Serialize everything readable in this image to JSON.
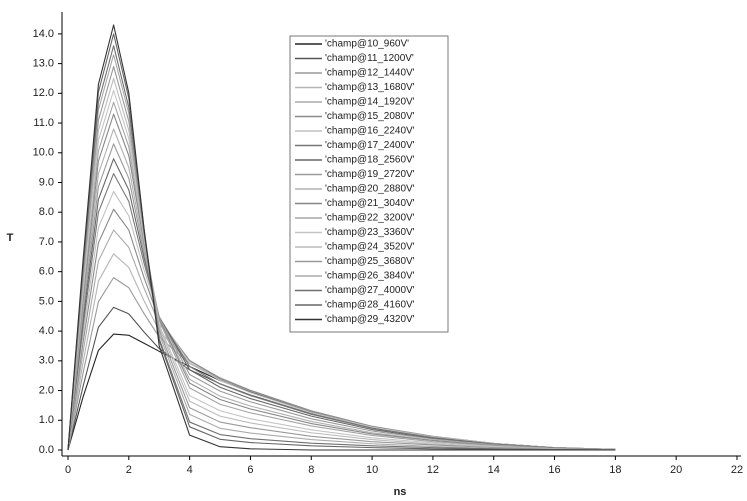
{
  "chart_data": {
    "type": "line",
    "xlabel": "ns",
    "ylabel": "T",
    "x": [
      0,
      0.5,
      1,
      1.5,
      2,
      2.5,
      3,
      4,
      5,
      6,
      8,
      10,
      12,
      14,
      16,
      18
    ],
    "xlim": [
      0,
      22
    ],
    "xticks": [
      0,
      2,
      4,
      6,
      8,
      10,
      12,
      14,
      16,
      18,
      20,
      22
    ],
    "ylim": [
      0,
      14.4
    ],
    "yticks": [
      {
        "value": 0,
        "label": "0.0"
      },
      {
        "value": 1,
        "label": "1.0"
      },
      {
        "value": 2,
        "label": "2.0"
      },
      {
        "value": 3,
        "label": "3.0"
      },
      {
        "value": 4,
        "label": "4.0"
      },
      {
        "value": 5,
        "label": "5.0"
      },
      {
        "value": 6,
        "label": "6.0"
      },
      {
        "value": 7,
        "label": "7.0"
      },
      {
        "value": 8,
        "label": "8.0"
      },
      {
        "value": 9,
        "label": "9.0"
      },
      {
        "value": 10,
        "label": "10.0"
      },
      {
        "value": 11,
        "label": "11.0"
      },
      {
        "value": 12,
        "label": "12.0"
      },
      {
        "value": 13,
        "label": "13.0"
      },
      {
        "value": 14,
        "label": "14.0"
      }
    ],
    "grid": false,
    "series": [
      {
        "name": "'champ@10_960V'",
        "color": "#222222",
        "values": [
          0,
          1.8,
          3.35,
          3.9,
          3.86,
          3.59,
          3.32,
          2.81,
          2.34,
          1.95,
          1.29,
          0.78,
          0.45,
          0.22,
          0.08,
          0.02
        ]
      },
      {
        "name": "'champ@11_1200V'",
        "color": "#555555",
        "values": [
          0,
          2.16,
          4.13,
          4.8,
          4.58,
          3.97,
          3.41,
          2.7,
          2.23,
          1.85,
          1.22,
          0.74,
          0.43,
          0.21,
          0.07,
          0.02
        ]
      },
      {
        "name": "'champ@12_1440V'",
        "color": "#999999",
        "values": [
          0,
          2.61,
          4.99,
          5.8,
          5.46,
          4.59,
          3.8,
          2.91,
          2.38,
          1.98,
          1.3,
          0.79,
          0.45,
          0.22,
          0.08,
          0.02
        ]
      },
      {
        "name": "'champ@13_1680V'",
        "color": "#b5b5b5",
        "values": [
          0,
          2.97,
          5.68,
          6.6,
          6.14,
          5.02,
          4.01,
          2.94,
          2.4,
          1.99,
          1.31,
          0.79,
          0.46,
          0.22,
          0.08,
          0.02
        ]
      },
      {
        "name": "'champ@14_1920V'",
        "color": "#aaaaaa",
        "values": [
          0,
          3.33,
          6.36,
          7.4,
          6.82,
          5.45,
          4.23,
          3.0,
          2.43,
          2.01,
          1.32,
          0.8,
          0.46,
          0.22,
          0.08,
          0.02
        ]
      },
      {
        "name": "'champ@15_2080V'",
        "color": "#8a8a8a",
        "values": [
          0,
          3.65,
          6.97,
          8.1,
          7.4,
          5.8,
          4.38,
          3.01,
          2.41,
          2.0,
          1.31,
          0.79,
          0.45,
          0.22,
          0.08,
          0.02
        ]
      },
      {
        "name": "'champ@16_2240V'",
        "color": "#c0c0c0",
        "values": [
          0,
          3.92,
          7.48,
          8.7,
          7.88,
          6.06,
          4.45,
          2.92,
          2.34,
          1.93,
          1.26,
          0.77,
          0.44,
          0.22,
          0.08,
          0.02
        ]
      },
      {
        "name": "'champ@17_2400V'",
        "color": "#777777",
        "values": [
          0,
          4.19,
          8.0,
          9.3,
          8.36,
          6.29,
          4.47,
          2.81,
          2.22,
          1.83,
          1.2,
          0.73,
          0.42,
          0.2,
          0.07,
          0.02
        ]
      },
      {
        "name": "'champ@18_2560V'",
        "color": "#666666",
        "values": [
          0,
          4.41,
          8.43,
          9.8,
          8.75,
          6.47,
          4.48,
          2.7,
          2.11,
          1.73,
          1.14,
          0.69,
          0.39,
          0.2,
          0.07,
          0.02
        ]
      },
      {
        "name": "'champ@19_2720V'",
        "color": "#9a9a9a",
        "values": [
          0,
          4.64,
          8.86,
          10.3,
          9.14,
          6.63,
          4.46,
          2.54,
          1.98,
          1.62,
          1.05,
          0.64,
          0.37,
          0.18,
          0.06,
          0.02
        ]
      },
      {
        "name": "'champ@20_2880V'",
        "color": "#b0b0b0",
        "values": [
          0,
          4.86,
          9.29,
          10.8,
          9.5,
          6.78,
          4.41,
          2.38,
          1.81,
          1.48,
          0.96,
          0.58,
          0.33,
          0.16,
          0.05,
          0.01
        ]
      },
      {
        "name": "'champ@21_3040V'",
        "color": "#888888",
        "values": [
          0,
          5.09,
          9.72,
          11.3,
          9.9,
          6.96,
          4.41,
          2.25,
          1.7,
          1.38,
          0.89,
          0.54,
          0.32,
          0.15,
          0.06,
          0.01
        ]
      },
      {
        "name": "'champ@22_3200V'",
        "color": "#a5a5a5",
        "values": [
          0,
          5.27,
          10.06,
          11.7,
          10.2,
          7.07,
          4.35,
          2.09,
          1.54,
          1.25,
          0.81,
          0.49,
          0.28,
          0.14,
          0.05,
          0.01
        ]
      },
      {
        "name": "'champ@23_3360V'",
        "color": "#c5c5c5",
        "values": [
          0,
          5.45,
          10.41,
          12.1,
          10.48,
          7.11,
          4.21,
          1.83,
          1.32,
          1.05,
          0.68,
          0.41,
          0.24,
          0.12,
          0.04,
          0.01
        ]
      },
      {
        "name": "'champ@24_3520V'",
        "color": "#bbbbbb",
        "values": [
          0,
          5.63,
          10.75,
          12.5,
          10.76,
          7.2,
          4.13,
          1.64,
          1.14,
          0.91,
          0.58,
          0.35,
          0.2,
          0.1,
          0.04,
          0.01
        ]
      },
      {
        "name": "'champ@25_3680V'",
        "color": "#999999",
        "values": [
          0,
          5.81,
          11.09,
          12.9,
          11.06,
          7.28,
          4.02,
          1.42,
          0.94,
          0.75,
          0.46,
          0.28,
          0.17,
          0.08,
          0.03,
          0.01
        ]
      },
      {
        "name": "'champ@26_3840V'",
        "color": "#aaaaaa",
        "values": [
          0,
          5.99,
          11.44,
          13.3,
          11.33,
          7.34,
          3.9,
          1.2,
          0.73,
          0.57,
          0.35,
          0.21,
          0.12,
          0.05,
          0.03,
          0
        ]
      },
      {
        "name": "'champ@27_4000V'",
        "color": "#707070",
        "values": [
          0,
          6.12,
          11.7,
          13.6,
          11.53,
          7.34,
          3.74,
          0.94,
          0.52,
          0.38,
          0.23,
          0.14,
          0.08,
          0.04,
          0.01,
          0
        ]
      },
      {
        "name": "'champ@28_4160V'",
        "color": "#666666",
        "values": [
          0,
          6.3,
          12.04,
          14.0,
          11.83,
          7.45,
          3.68,
          0.78,
          0.36,
          0.25,
          0.14,
          0.08,
          0.04,
          0.03,
          0.01,
          0
        ]
      },
      {
        "name": "'champ@29_4320V'",
        "color": "#333333",
        "values": [
          0,
          6.44,
          12.3,
          14.3,
          12.01,
          7.44,
          3.5,
          0.5,
          0.11,
          0.04,
          0,
          0,
          0,
          0,
          0,
          0
        ]
      }
    ]
  }
}
